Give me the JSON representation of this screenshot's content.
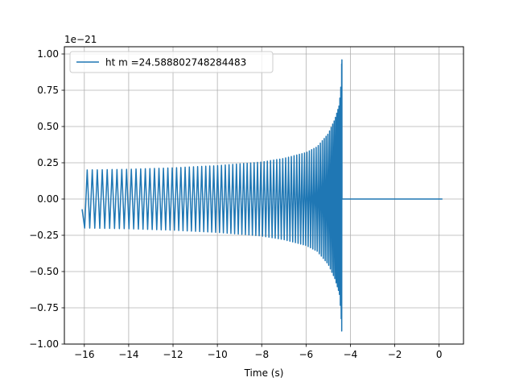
{
  "chart_data": {
    "type": "line",
    "title": "",
    "xlabel": "Time (s)",
    "ylabel": "",
    "y_scale_label": "1e−21",
    "xlim": [
      -16.9,
      1.1
    ],
    "ylim": [
      -1.0,
      1.05
    ],
    "xticks": [
      -16,
      -14,
      -12,
      -10,
      -8,
      -6,
      -4,
      -2,
      0
    ],
    "yticks": [
      -1.0,
      -0.75,
      -0.5,
      -0.25,
      0.0,
      0.25,
      0.5,
      0.75,
      1.0
    ],
    "xtick_labels": [
      "−16",
      "−14",
      "−12",
      "−10",
      "−8",
      "−6",
      "−4",
      "−2",
      "0"
    ],
    "ytick_labels": [
      "−1.00",
      "−0.75",
      "−0.50",
      "−0.25",
      "0.00",
      "0.25",
      "0.50",
      "0.75",
      "1.00"
    ],
    "grid": true,
    "legend_position": "top-left",
    "series": [
      {
        "name": "ht m =24.588802748284483",
        "color": "#1f77b4",
        "x_start": -16.1,
        "x_merger": -4.38,
        "x_end": 0.15,
        "envelope_points": [
          [
            -16.1,
            0.2
          ],
          [
            -14.0,
            0.205
          ],
          [
            -12.0,
            0.215
          ],
          [
            -10.0,
            0.23
          ],
          [
            -8.0,
            0.255
          ],
          [
            -7.0,
            0.28
          ],
          [
            -6.0,
            0.32
          ],
          [
            -5.5,
            0.36
          ],
          [
            -5.0,
            0.45
          ],
          [
            -4.7,
            0.55
          ],
          [
            -4.5,
            0.65
          ],
          [
            -4.42,
            0.8
          ],
          [
            -4.39,
            0.96
          ]
        ],
        "min_peak": -0.91,
        "post_merger_value": 0.0
      }
    ]
  }
}
